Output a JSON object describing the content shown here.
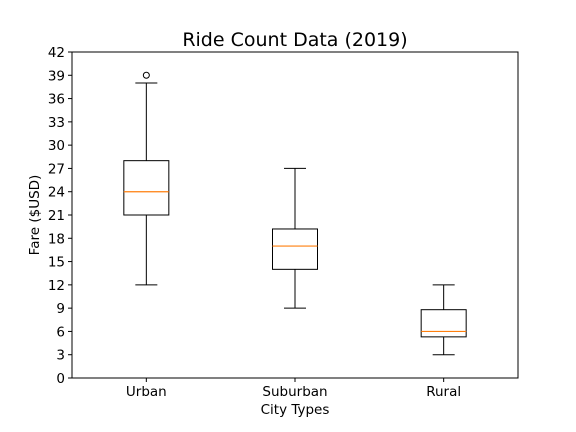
{
  "chart_data": {
    "type": "box",
    "title": "Ride Count Data (2019)",
    "xlabel": "City Types",
    "ylabel": "Fare ($USD)",
    "categories": [
      "Urban",
      "Suburban",
      "Rural"
    ],
    "boxes": [
      {
        "name": "Urban",
        "whisker_low": 12,
        "q1": 21,
        "median": 24,
        "q3": 28,
        "whisker_high": 38,
        "fliers": [
          39
        ]
      },
      {
        "name": "Suburban",
        "whisker_low": 9,
        "q1": 14,
        "median": 17,
        "q3": 19.2,
        "whisker_high": 27,
        "fliers": []
      },
      {
        "name": "Rural",
        "whisker_low": 3,
        "q1": 5.3,
        "median": 6,
        "q3": 8.8,
        "whisker_high": 12,
        "fliers": []
      }
    ],
    "ylim": [
      0,
      42
    ],
    "yticks": [
      0,
      3,
      6,
      9,
      12,
      15,
      18,
      21,
      24,
      27,
      30,
      33,
      36,
      39,
      42
    ],
    "grid": false,
    "colors": {
      "box": "#000000",
      "median": "#ff7f0e"
    }
  }
}
